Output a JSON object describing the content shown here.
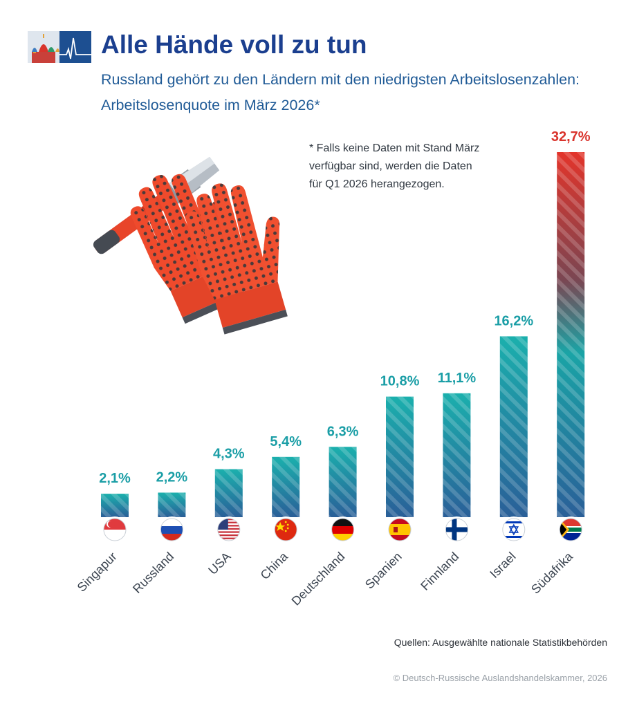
{
  "header": {
    "title": "Alle Hände voll zu tun",
    "subtitle": "Russland gehört zu den Ländern mit den niedrigsten Arbeitslosenzahlen: Arbeitslosenquote im März 2026*",
    "logo_icon": "kremlin-heartbeat-logo-icon"
  },
  "footnote": "* Falls keine Daten mit Stand März\n  verfügbar sind, werden die Daten\n  für Q1 2026 herangezogen.",
  "illustration": {
    "icons": [
      "hammer-icon",
      "work-gloves-icon"
    ]
  },
  "colors": {
    "teal": "#1bb0ad",
    "blue": "#2a5f98",
    "red": "#d9332c",
    "label_teal": "#1a9ea6"
  },
  "chart_data": {
    "type": "bar",
    "categories": [
      "Singapur",
      "Russland",
      "USA",
      "China",
      "Deutschland",
      "Spanien",
      "Finnland",
      "Israel",
      "Südafrika"
    ],
    "values": [
      2.1,
      2.2,
      4.3,
      5.4,
      6.3,
      10.8,
      11.1,
      16.2,
      32.7
    ],
    "value_labels": [
      "2,1%",
      "2,2%",
      "4,3%",
      "5,4%",
      "6,3%",
      "10,8%",
      "11,1%",
      "16,2%",
      "32,7%"
    ],
    "flags": [
      "flag-singapore-icon",
      "flag-russia-icon",
      "flag-usa-icon",
      "flag-china-icon",
      "flag-germany-icon",
      "flag-spain-icon",
      "flag-finland-icon",
      "flag-israel-icon",
      "flag-south-africa-icon"
    ],
    "highlight": "Südafrika",
    "xlabel": "",
    "ylabel": "",
    "ylim": [
      0,
      32.7
    ],
    "grid": false,
    "legend": "none"
  },
  "footer": {
    "sources": "Quellen: Ausgewählte nationale Statistikbehörden",
    "copyright": "© Deutsch-Russische Auslandshandelskammer, 2026"
  }
}
